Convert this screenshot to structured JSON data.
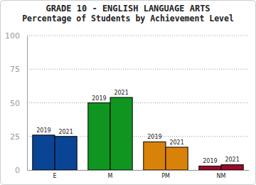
{
  "chart_data": {
    "type": "bar",
    "title": "GRADE 10 - ENGLISH LANGUAGE ARTS",
    "subtitle": "Percentage of Students by Achievement Level",
    "categories": [
      "E",
      "M",
      "PM",
      "NM"
    ],
    "series": [
      {
        "name": "2019",
        "colors": [
          "#0a4595",
          "#109620",
          "#d9820a",
          "#9b0a2a"
        ],
        "values": [
          26,
          50,
          21,
          3
        ]
      },
      {
        "name": "2021",
        "colors": [
          "#0a4595",
          "#109620",
          "#d9820a",
          "#9b0a2a"
        ],
        "values": [
          25,
          54,
          17,
          4
        ]
      }
    ],
    "ylim": [
      0,
      100
    ],
    "yticks": [
      0,
      25,
      50,
      75,
      100
    ],
    "grid": true
  }
}
